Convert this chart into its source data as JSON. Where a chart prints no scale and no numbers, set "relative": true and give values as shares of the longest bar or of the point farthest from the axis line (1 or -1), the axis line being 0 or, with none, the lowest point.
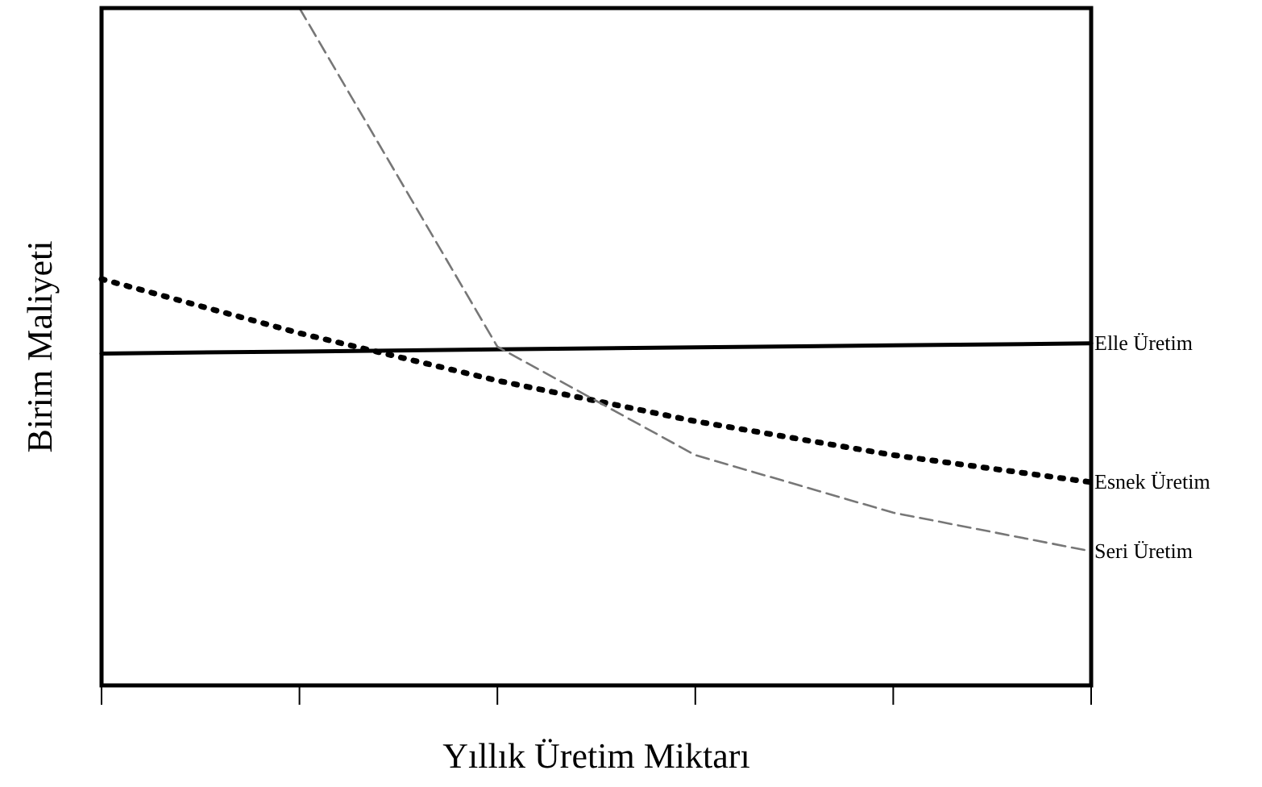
{
  "chart_data": {
    "type": "line",
    "relative": true,
    "xlabel": "Yıllık Üretim Miktarı",
    "ylabel": "Birim Maliyeti",
    "legend": false,
    "categories": [
      null,
      null,
      null,
      null,
      null,
      null
    ],
    "series": [
      {
        "name": "Elle Üretim",
        "color": "#000000",
        "line_style": "solid",
        "values": [
          0.49,
          0.493,
          0.496,
          0.499,
          0.502,
          0.505
        ]
      },
      {
        "name": "Esnek Üretim",
        "color": "#000000",
        "line_style": "dotted",
        "values": [
          0.6,
          0.52,
          0.45,
          0.39,
          0.34,
          0.3
        ]
      },
      {
        "name": "Seri Üretim",
        "color": "#777777",
        "line_style": "dashed",
        "values": [
          null,
          1,
          0.5,
          0.34,
          0.255,
          0.198
        ]
      }
    ]
  }
}
